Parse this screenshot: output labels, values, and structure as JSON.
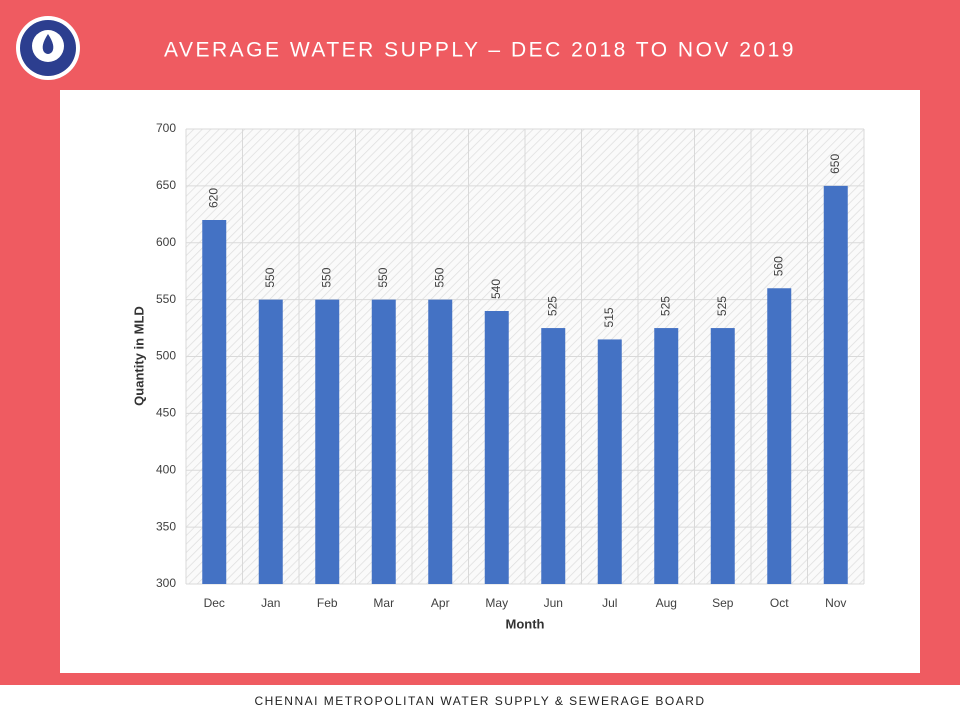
{
  "chart_data": {
    "type": "bar",
    "title": "AVERAGE WATER SUPPLY – DEC 2018 TO NOV 2019",
    "x_label": "Month",
    "y_label": "Quantity in MLD",
    "categories": [
      "Dec",
      "Jan",
      "Feb",
      "Mar",
      "Apr",
      "May",
      "Jun",
      "Jul",
      "Aug",
      "Sep",
      "Oct",
      "Nov"
    ],
    "values": [
      620,
      550,
      550,
      550,
      550,
      540,
      525,
      515,
      525,
      525,
      560,
      650
    ],
    "color": "#4472c4",
    "ylim": [
      300,
      700
    ],
    "yticks": [
      300,
      350,
      400,
      450,
      500,
      550,
      600,
      650,
      700
    ],
    "grid": true
  },
  "footer": "CHENNAI METROPOLITAN WATER SUPPLY & SEWERAGE BOARD"
}
